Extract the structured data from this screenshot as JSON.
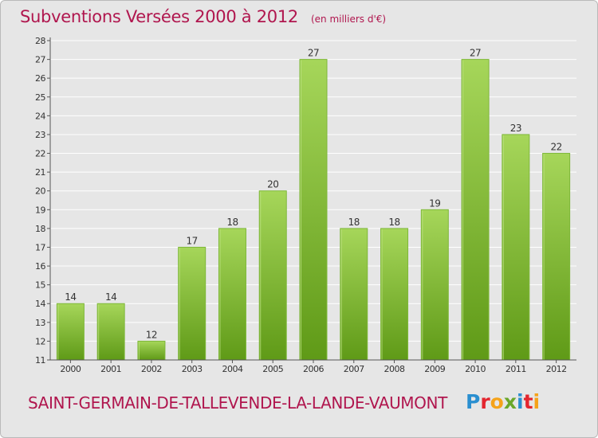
{
  "header": {
    "title": "Subventions Versées 2000 à 2012",
    "subtitle": "(en milliers d'€)"
  },
  "footer": {
    "commune": "SAINT-GERMAIN-DE-TALLEVENDE-LA-LANDE-VAUMONT",
    "logo_text": "Proxiti",
    "logo_colors": [
      "#2a8fd0",
      "#e3262f",
      "#f5a31a",
      "#6aa72a",
      "#2a8fd0",
      "#e3262f",
      "#f5a31a"
    ]
  },
  "colors": {
    "bar_light": "#a6d65a",
    "bar_dark": "#5f9a17",
    "axis": "#555555",
    "grid": "#ffffff",
    "accent": "#b0164e"
  },
  "chart_data": {
    "type": "bar",
    "title": "Subventions Versées 2000 à 2012",
    "subtitle": "(en milliers d'€)",
    "categories": [
      "2000",
      "2001",
      "2002",
      "2003",
      "2004",
      "2005",
      "2006",
      "2007",
      "2008",
      "2009",
      "2010",
      "2011",
      "2012"
    ],
    "values": [
      14,
      14,
      12,
      17,
      18,
      20,
      27,
      18,
      18,
      19,
      27,
      23,
      22
    ],
    "yticks": [
      11,
      12,
      13,
      14,
      15,
      16,
      17,
      18,
      19,
      20,
      21,
      22,
      23,
      24,
      25,
      26,
      27,
      28
    ],
    "ylim": [
      11,
      28
    ],
    "xlabel": "",
    "ylabel": "",
    "grid": true,
    "data_labels": true
  }
}
